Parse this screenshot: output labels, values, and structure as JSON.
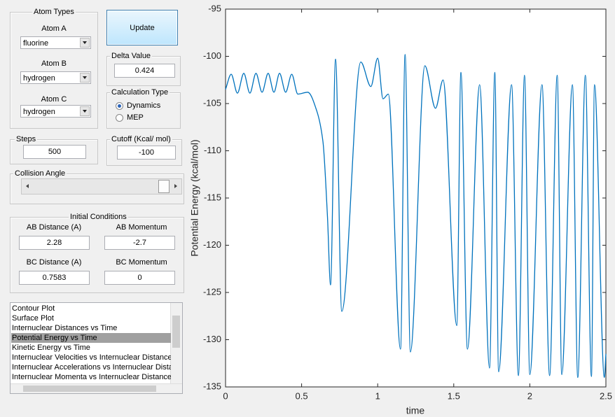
{
  "atom_types": {
    "title": "Atom Types",
    "atom_a": {
      "label": "Atom A",
      "value": "fluorine"
    },
    "atom_b": {
      "label": "Atom B",
      "value": "hydrogen"
    },
    "atom_c": {
      "label": "Atom C",
      "value": "hydrogen"
    }
  },
  "update_button": "Update",
  "delta_value": {
    "label": "Delta Value",
    "value": "0.424"
  },
  "calculation_type": {
    "label": "Calculation Type",
    "options": [
      "Dynamics",
      "MEP"
    ],
    "selected": 0
  },
  "steps": {
    "label": "Steps",
    "value": "500"
  },
  "cutoff": {
    "label": "Cutoff (Kcal/ mol)",
    "value": "-100"
  },
  "collision_angle": {
    "label": "Collision Angle"
  },
  "initial_conditions": {
    "title": "Initial Conditions",
    "ab_distance": {
      "label": "AB Distance (A)",
      "value": "2.28"
    },
    "ab_momentum": {
      "label": "AB Momentum",
      "value": "-2.7"
    },
    "bc_distance": {
      "label": "BC Distance (A)",
      "value": "0.7583"
    },
    "bc_momentum": {
      "label": "BC Momentum",
      "value": "0"
    }
  },
  "plot_list": {
    "items": [
      "Contour Plot",
      "Surface Plot",
      "Internuclear Distances vs Time",
      "Potential Energy vs Time",
      "Kinetic Energy vs Time",
      "Internuclear Velocities vs Internuclear Distance",
      "Internuclear Accelerations vs Internuclear Dista",
      "Internuclear Momenta vs Internuclear Distance"
    ],
    "selected": 3
  },
  "chart_data": {
    "type": "line",
    "x_label": "time",
    "y_label": "Potential Energy (kcal/mol)",
    "color": "#0072bd",
    "x": [
      0,
      0.037,
      0.078,
      0.12,
      0.16,
      0.2,
      0.24,
      0.28,
      0.318,
      0.355,
      0.395,
      0.435,
      0.475,
      0.54,
      0.6,
      0.64,
      0.67,
      0.69,
      0.723,
      0.764,
      0.889,
      0.955,
      1.0,
      1.035,
      1.07,
      1.15,
      1.18,
      1.215,
      1.31,
      1.38,
      1.43,
      1.52,
      1.547,
      1.59,
      1.67,
      1.735,
      1.77,
      1.795,
      1.88,
      1.925,
      1.965,
      2.0,
      2.08,
      2.13,
      2.18,
      2.21,
      2.28,
      2.315,
      2.365,
      2.405,
      2.425,
      2.49,
      2.5
    ],
    "values": [
      -103.5,
      -101.9,
      -103.9,
      -101.8,
      -103.9,
      -101.8,
      -103.8,
      -101.8,
      -103.8,
      -101.8,
      -103.8,
      -101.9,
      -104,
      -103.8,
      -105.8,
      -109,
      -117,
      -124.2,
      -100.3,
      -127,
      -100.6,
      -103.2,
      -100.2,
      -104.5,
      -104,
      -131,
      -99.8,
      -131.3,
      -101,
      -105.5,
      -102.5,
      -128.5,
      -101.7,
      -131,
      -103,
      -133,
      -101.7,
      -133.4,
      -103,
      -133.8,
      -102,
      -133.7,
      -103,
      -133.8,
      -102,
      -133.7,
      -103,
      -134,
      -102,
      -133.9,
      -103,
      -134,
      -131.5
    ],
    "xlim": [
      0,
      2.5
    ],
    "xticks": [
      0,
      0.5,
      1,
      1.5,
      2,
      2.5
    ],
    "ylim": [
      -135,
      -95
    ],
    "yticks": [
      -135,
      -130,
      -125,
      -120,
      -115,
      -110,
      -105,
      -100,
      -95
    ]
  }
}
